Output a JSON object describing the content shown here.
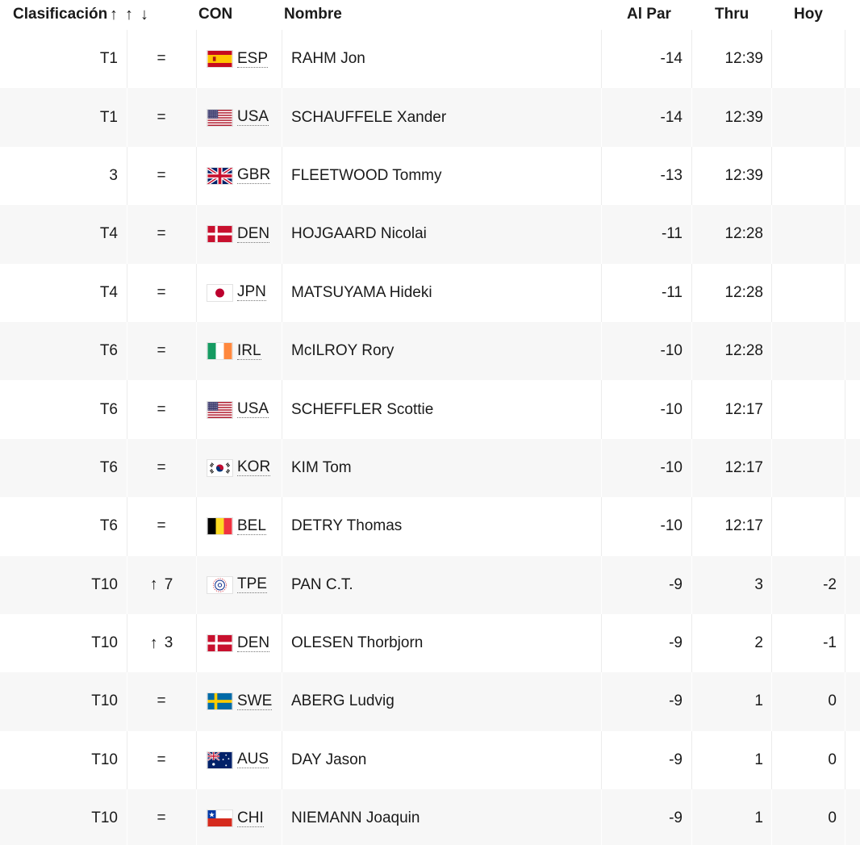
{
  "header": {
    "position": "Clasificación",
    "sort_icons": "↑↑↓",
    "country": "CON",
    "name": "Nombre",
    "to_par": "Al Par",
    "thru": "Thru",
    "today": "Hoy"
  },
  "rows": [
    {
      "pos": "T1",
      "move": "=",
      "move_arrow": "",
      "flag": "esp",
      "country": "ESP",
      "name": "RAHM Jon",
      "par": "-14",
      "thru": "12:39",
      "today": ""
    },
    {
      "pos": "T1",
      "move": "=",
      "move_arrow": "",
      "flag": "usa",
      "country": "USA",
      "name": "SCHAUFFELE Xander",
      "par": "-14",
      "thru": "12:39",
      "today": ""
    },
    {
      "pos": "3",
      "move": "=",
      "move_arrow": "",
      "flag": "gbr",
      "country": "GBR",
      "name": "FLEETWOOD Tommy",
      "par": "-13",
      "thru": "12:39",
      "today": ""
    },
    {
      "pos": "T4",
      "move": "=",
      "move_arrow": "",
      "flag": "den",
      "country": "DEN",
      "name": "HOJGAARD Nicolai",
      "par": "-11",
      "thru": "12:28",
      "today": ""
    },
    {
      "pos": "T4",
      "move": "=",
      "move_arrow": "",
      "flag": "jpn",
      "country": "JPN",
      "name": "MATSUYAMA Hideki",
      "par": "-11",
      "thru": "12:28",
      "today": ""
    },
    {
      "pos": "T6",
      "move": "=",
      "move_arrow": "",
      "flag": "irl",
      "country": "IRL",
      "name": "McILROY Rory",
      "par": "-10",
      "thru": "12:28",
      "today": ""
    },
    {
      "pos": "T6",
      "move": "=",
      "move_arrow": "",
      "flag": "usa",
      "country": "USA",
      "name": "SCHEFFLER Scottie",
      "par": "-10",
      "thru": "12:17",
      "today": ""
    },
    {
      "pos": "T6",
      "move": "=",
      "move_arrow": "",
      "flag": "kor",
      "country": "KOR",
      "name": "KIM Tom",
      "par": "-10",
      "thru": "12:17",
      "today": ""
    },
    {
      "pos": "T6",
      "move": "=",
      "move_arrow": "",
      "flag": "bel",
      "country": "BEL",
      "name": "DETRY Thomas",
      "par": "-10",
      "thru": "12:17",
      "today": ""
    },
    {
      "pos": "T10",
      "move": "7",
      "move_arrow": "↑",
      "flag": "tpe",
      "country": "TPE",
      "name": "PAN C.T.",
      "par": "-9",
      "thru": "3",
      "today": "-2"
    },
    {
      "pos": "T10",
      "move": "3",
      "move_arrow": "↑",
      "flag": "den",
      "country": "DEN",
      "name": "OLESEN Thorbjorn",
      "par": "-9",
      "thru": "2",
      "today": "-1"
    },
    {
      "pos": "T10",
      "move": "=",
      "move_arrow": "",
      "flag": "swe",
      "country": "SWE",
      "name": "ABERG Ludvig",
      "par": "-9",
      "thru": "1",
      "today": "0"
    },
    {
      "pos": "T10",
      "move": "=",
      "move_arrow": "",
      "flag": "aus",
      "country": "AUS",
      "name": "DAY Jason",
      "par": "-9",
      "thru": "1",
      "today": "0"
    },
    {
      "pos": "T10",
      "move": "=",
      "move_arrow": "",
      "flag": "chi",
      "country": "CHI",
      "name": "NIEMANN Joaquin",
      "par": "-9",
      "thru": "1",
      "today": "0"
    }
  ]
}
